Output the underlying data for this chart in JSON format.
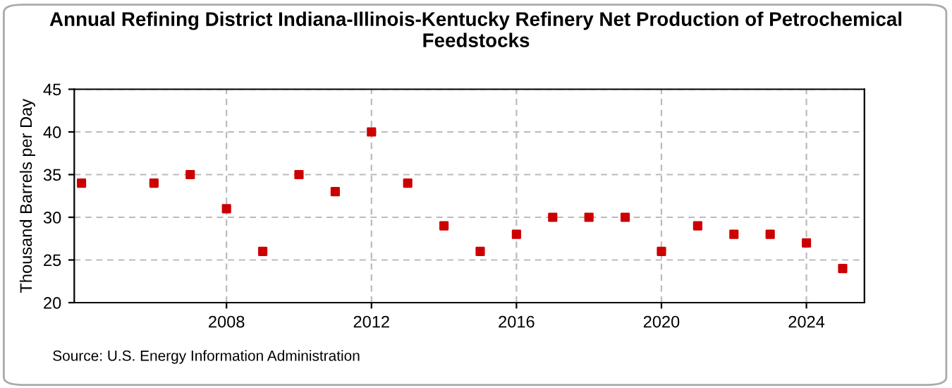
{
  "chart_data": {
    "type": "scatter",
    "title": "Annual Refining District Indiana-Illinois-Kentucky Refinery Net Production of Petrochemical Feedstocks",
    "ylabel": "Thousand Barrels per Day",
    "x": [
      2004,
      2006,
      2007,
      2008,
      2009,
      2010,
      2011,
      2012,
      2013,
      2014,
      2015,
      2016,
      2017,
      2018,
      2019,
      2020,
      2021,
      2022,
      2023,
      2024,
      2025
    ],
    "series": [
      {
        "color": "#cc0000",
        "values": [
          34,
          34,
          35,
          31,
          26,
          35,
          33,
          40,
          34,
          29,
          26,
          28,
          30,
          30,
          30,
          26,
          29,
          28,
          28,
          27,
          24
        ]
      }
    ],
    "xlim": [
      2003.8,
      2025.6
    ],
    "xticks": [
      2008,
      2012,
      2016,
      2020,
      2024
    ],
    "ylim": [
      20,
      45
    ],
    "yticks": [
      20,
      25,
      30,
      35,
      40,
      45
    ],
    "grid": true,
    "marker": "square",
    "annotations": [
      "Source: U.S. Energy Information Administration"
    ]
  }
}
